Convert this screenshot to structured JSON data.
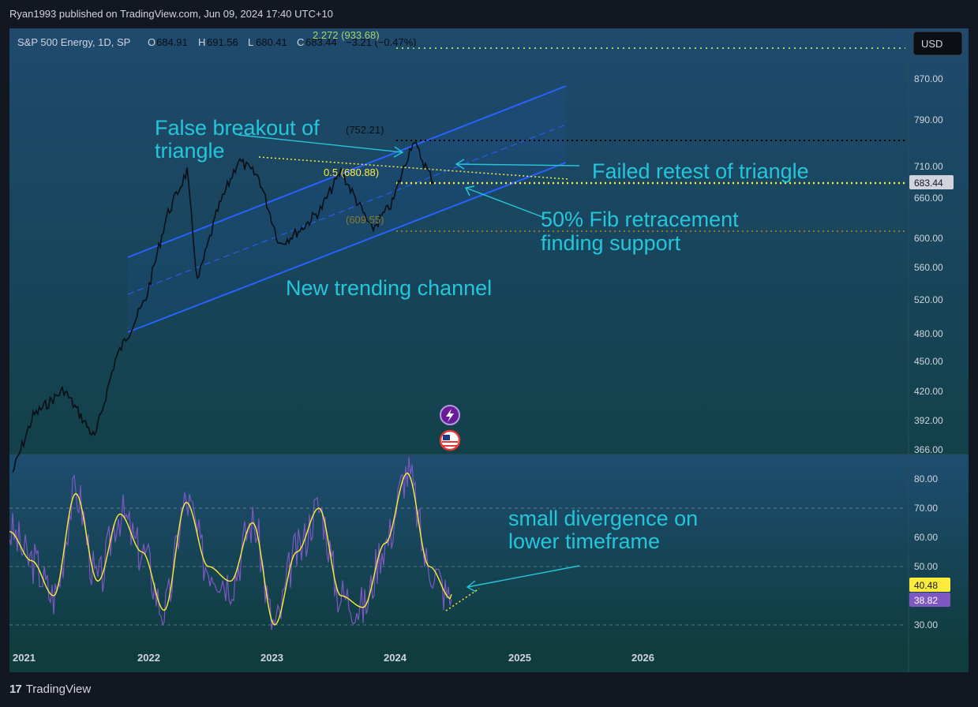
{
  "header": {
    "published": "Ryan1993 published on TradingView.com, Jun 09, 2024 17:40 UTC+10"
  },
  "legend": {
    "symbol": "S&P 500 Energy, 1D, SP",
    "o_label": "O",
    "o_value": "684.91",
    "h_label": "H",
    "h_value": "691.56",
    "l_label": "L",
    "l_value": "680.41",
    "c_label": "C",
    "c_value": "683.44",
    "change": "−3.21 (−0.47%)"
  },
  "currency": "USD",
  "price_axis": [
    "870.00",
    "790.00",
    "710.00",
    "660.00",
    "600.00",
    "560.00",
    "520.00",
    "480.00",
    "450.00",
    "420.00",
    "392.00",
    "366.00"
  ],
  "price_badge": "683.44",
  "fib_labels": {
    "top": "2.272 (933.68)",
    "high": "(752.21)",
    "mid": "0.5 (680.88)",
    "low": "(609.55)"
  },
  "annotations": {
    "false_breakout": [
      "False breakout of",
      "triangle"
    ],
    "failed_retest": "Failed retest of triangle",
    "fib_support": [
      "50% Fib retracement",
      "finding support"
    ],
    "channel": "New trending channel",
    "divergence": [
      "small divergence on",
      "lower timeframe"
    ]
  },
  "rsi_axis": [
    "80.00",
    "70.00",
    "60.00",
    "50.00",
    "30.00"
  ],
  "rsi_badges": {
    "ma": "40.48",
    "rsi": "38.82"
  },
  "time_axis": [
    "2021",
    "2022",
    "2023",
    "2024",
    "2025",
    "2026"
  ],
  "footer": {
    "brand": "TradingView",
    "logo": "17"
  },
  "colors": {
    "channel": "#2962ff",
    "fib": "#ffeb3b",
    "annotation": "#26c6da",
    "rsi": "#7e57c2",
    "rsi_ma": "#ffeb3b"
  },
  "chart_data": [
    {
      "type": "candlestick",
      "title": "",
      "y_range": [
        366,
        933.68
      ],
      "x_range": [
        "2021",
        "2026"
      ],
      "approx_path": [
        {
          "x": "2021-01",
          "y": 345
        },
        {
          "x": "2021-03",
          "y": 395
        },
        {
          "x": "2021-06",
          "y": 420
        },
        {
          "x": "2021-09",
          "y": 375
        },
        {
          "x": "2021-11",
          "y": 450
        },
        {
          "x": "2022-02",
          "y": 520
        },
        {
          "x": "2022-04",
          "y": 630
        },
        {
          "x": "2022-06",
          "y": 700
        },
        {
          "x": "2022-07",
          "y": 540
        },
        {
          "x": "2022-09",
          "y": 640
        },
        {
          "x": "2022-11",
          "y": 718
        },
        {
          "x": "2023-01",
          "y": 690
        },
        {
          "x": "2023-03",
          "y": 590
        },
        {
          "x": "2023-05",
          "y": 610
        },
        {
          "x": "2023-07",
          "y": 640
        },
        {
          "x": "2023-09",
          "y": 700
        },
        {
          "x": "2023-11",
          "y": 640
        },
        {
          "x": "2023-12",
          "y": 610
        },
        {
          "x": "2024-02",
          "y": 650
        },
        {
          "x": "2024-04",
          "y": 752
        },
        {
          "x": "2024-06",
          "y": 683
        }
      ],
      "close": 683.44,
      "fib_levels": [
        933.68,
        752.21,
        680.88,
        609.55
      ]
    },
    {
      "type": "line",
      "title": "RSI",
      "y_range": [
        25,
        85
      ],
      "bands": [
        70,
        50,
        30
      ],
      "series": [
        {
          "values": [
            62,
            52,
            40,
            75,
            45,
            68,
            55,
            35,
            72,
            50,
            45,
            65,
            30,
            55,
            70,
            40,
            36,
            58,
            82,
            50,
            38.82
          ]
        }
      ],
      "ma_last": 40.48
    }
  ]
}
